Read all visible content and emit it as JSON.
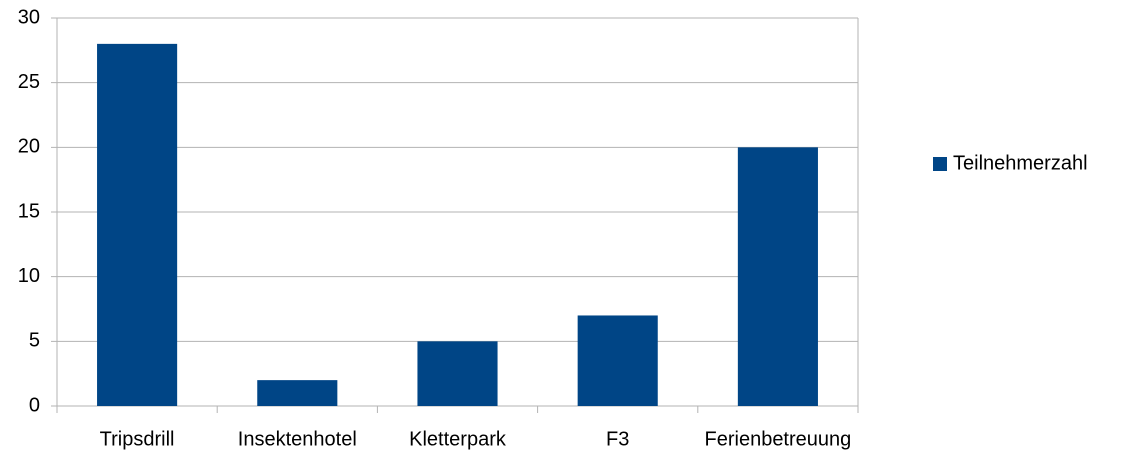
{
  "chart_data": {
    "type": "bar",
    "categories": [
      "Tripsdrill",
      "Insektenhotel",
      "Kletterpark",
      "F3",
      "Ferienbetreuung"
    ],
    "series": [
      {
        "name": "Teilnehmerzahl",
        "color": "#004586",
        "values": [
          28,
          2,
          5,
          7,
          20
        ]
      }
    ],
    "ylim": [
      0,
      30
    ],
    "yticks": [
      0,
      5,
      10,
      15,
      20,
      25,
      30
    ],
    "grid": true,
    "legend": "right"
  }
}
